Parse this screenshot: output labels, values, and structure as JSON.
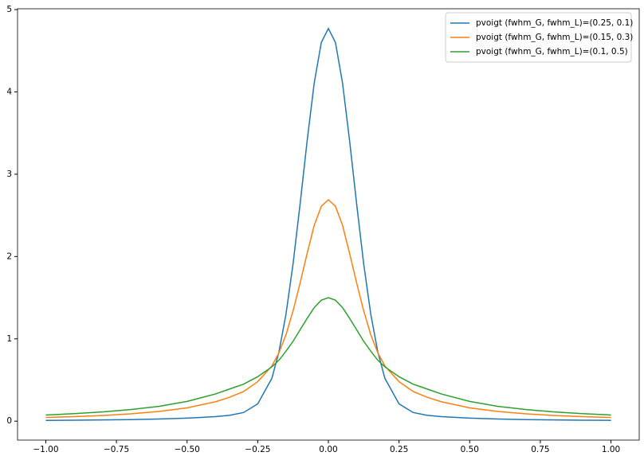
{
  "chart_data": {
    "type": "line",
    "x": [
      -1,
      -0.9,
      -0.8,
      -0.7,
      -0.6,
      -0.5,
      -0.4,
      -0.35,
      -0.3,
      -0.25,
      -0.2,
      -0.175,
      -0.15,
      -0.125,
      -0.1,
      -0.075,
      -0.05,
      -0.025,
      0,
      0.025,
      0.05,
      0.075,
      0.1,
      0.125,
      0.15,
      0.175,
      0.2,
      0.25,
      0.3,
      0.35,
      0.4,
      0.5,
      0.6,
      0.7,
      0.8,
      0.9,
      1
    ],
    "series": [
      {
        "name": "pvoigt (fwhm_G, fwhm_L)=(0.25, 0.1)",
        "color": "#1f77b4",
        "values": [
          0.0098,
          0.012,
          0.015,
          0.0195,
          0.026,
          0.037,
          0.055,
          0.071,
          0.105,
          0.21,
          0.52,
          0.84,
          1.3,
          1.91,
          2.64,
          3.41,
          4.11,
          4.6,
          4.77,
          4.6,
          4.11,
          3.41,
          2.64,
          1.91,
          1.3,
          0.84,
          0.52,
          0.21,
          0.105,
          0.071,
          0.055,
          0.037,
          0.026,
          0.0195,
          0.015,
          0.012,
          0.0098
        ]
      },
      {
        "name": "pvoigt (fwhm_G, fwhm_L)=(0.15, 0.3)",
        "color": "#ff7f0e",
        "values": [
          0.045,
          0.055,
          0.069,
          0.089,
          0.118,
          0.162,
          0.235,
          0.29,
          0.36,
          0.48,
          0.67,
          0.83,
          1.05,
          1.34,
          1.68,
          2.04,
          2.38,
          2.61,
          2.69,
          2.61,
          2.38,
          2.04,
          1.68,
          1.34,
          1.05,
          0.83,
          0.67,
          0.48,
          0.36,
          0.29,
          0.235,
          0.162,
          0.118,
          0.089,
          0.069,
          0.055,
          0.045
        ]
      },
      {
        "name": "pvoigt (fwhm_G, fwhm_L)=(0.1, 0.5)",
        "color": "#2ca02c",
        "values": [
          0.075,
          0.091,
          0.112,
          0.141,
          0.18,
          0.24,
          0.33,
          0.39,
          0.45,
          0.54,
          0.66,
          0.74,
          0.85,
          0.97,
          1.11,
          1.25,
          1.38,
          1.47,
          1.5,
          1.47,
          1.38,
          1.25,
          1.11,
          0.97,
          0.85,
          0.74,
          0.66,
          0.54,
          0.45,
          0.39,
          0.33,
          0.24,
          0.18,
          0.141,
          0.112,
          0.091,
          0.075
        ]
      }
    ],
    "xlim": [
      -1.1,
      1.1
    ],
    "ylim": [
      -0.23,
      5.01
    ],
    "xticks": [
      {
        "value": -1,
        "label": "−1.00"
      },
      {
        "value": -0.75,
        "label": "−0.75"
      },
      {
        "value": -0.5,
        "label": "−0.50"
      },
      {
        "value": -0.25,
        "label": "−0.25"
      },
      {
        "value": 0,
        "label": "0.00"
      },
      {
        "value": 0.25,
        "label": "0.25"
      },
      {
        "value": 0.5,
        "label": "0.50"
      },
      {
        "value": 0.75,
        "label": "0.75"
      },
      {
        "value": 1,
        "label": "1.00"
      }
    ],
    "yticks": [
      0,
      1,
      2,
      3,
      4,
      5
    ],
    "legend": "upper right"
  }
}
